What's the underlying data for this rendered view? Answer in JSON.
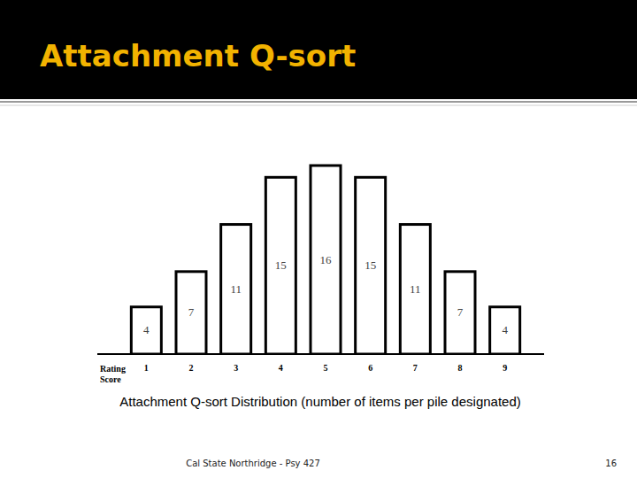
{
  "slide": {
    "title": "Attachment Q-sort",
    "footer": "Cal State Northridge - Psy 427",
    "page_number": 16
  },
  "chart_data": {
    "type": "bar",
    "caption": "Attachment Q-sort Distribution (number of items per pile designated)",
    "x_label": "Rating Score",
    "categories": [
      "1",
      "2",
      "3",
      "4",
      "5",
      "6",
      "7",
      "8",
      "9"
    ],
    "values": [
      4,
      7,
      11,
      15,
      16,
      15,
      11,
      7,
      4
    ],
    "color": "#ffffff",
    "ylim": [
      0,
      16
    ],
    "grid": false,
    "data_labels": true,
    "tick_labels": "x"
  }
}
